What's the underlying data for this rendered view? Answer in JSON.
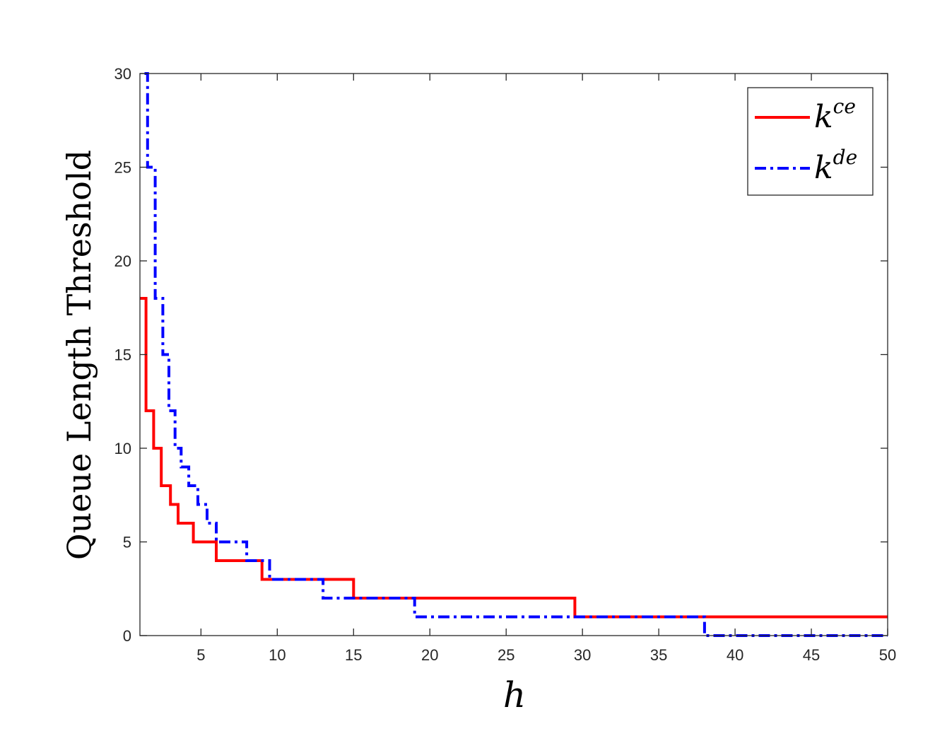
{
  "chart_data": {
    "type": "line",
    "step": "post",
    "xlabel": "h",
    "ylabel": "Queue Length Threshold",
    "xlim": [
      1,
      50
    ],
    "ylim": [
      0,
      30
    ],
    "xticks": [
      5,
      10,
      15,
      20,
      25,
      30,
      35,
      40,
      45,
      50
    ],
    "yticks": [
      0,
      5,
      10,
      15,
      20,
      25,
      30
    ],
    "grid": false,
    "legend_position": "top-right",
    "series": [
      {
        "name": "k^ce",
        "legend_base": "k",
        "legend_sup": "ce",
        "color": "#ff0000",
        "line_style": "solid",
        "x": [
          1,
          1.4,
          1.9,
          2.4,
          3.0,
          3.5,
          4.5,
          6.0,
          9.0,
          15.0,
          29.5,
          50
        ],
        "y": [
          18,
          12,
          10,
          8,
          7,
          6,
          5,
          4,
          3,
          2,
          1,
          1
        ]
      },
      {
        "name": "k^de",
        "legend_base": "k",
        "legend_sup": "de",
        "color": "#0000ff",
        "line_style": "dash-dot",
        "x": [
          1.3,
          1.5,
          2.0,
          2.5,
          2.9,
          3.3,
          3.7,
          4.2,
          4.8,
          5.4,
          6.0,
          6.7,
          8.0,
          9.5,
          13.0,
          19.0,
          38.0,
          50
        ],
        "y": [
          30,
          25,
          18,
          15,
          12,
          10,
          9,
          8,
          7,
          6,
          5,
          5,
          4,
          3,
          2,
          1,
          0,
          0
        ]
      }
    ]
  },
  "colors": {
    "axis": "#262626",
    "background": "#ffffff"
  }
}
